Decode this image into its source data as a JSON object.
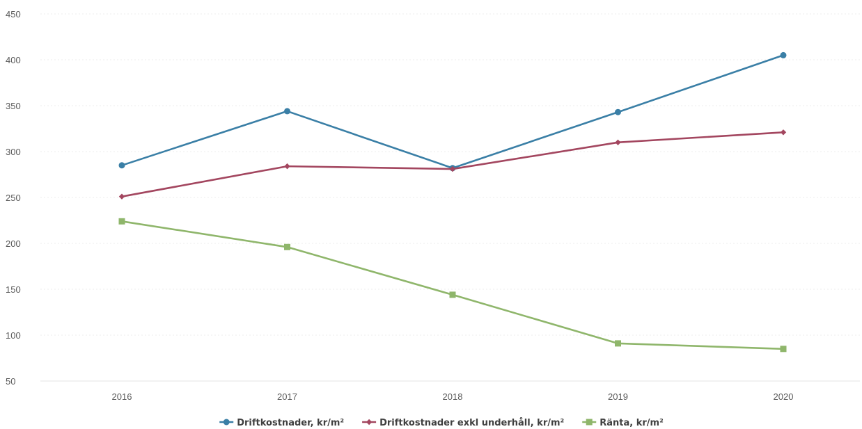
{
  "chart_data": {
    "type": "line",
    "title": "",
    "xlabel": "",
    "ylabel": "",
    "categories": [
      "2016",
      "2017",
      "2018",
      "2019",
      "2020"
    ],
    "ylim": [
      50,
      450
    ],
    "yticks": [
      50,
      100,
      150,
      200,
      250,
      300,
      350,
      400,
      450
    ],
    "grid": true,
    "legend_position": "bottom",
    "series": [
      {
        "name": "Driftkostnader, kr/m²",
        "color": "#3a7fa6",
        "marker": "circle",
        "values": [
          285,
          344,
          282,
          343,
          405
        ]
      },
      {
        "name": "Driftkostnader exkl underhåll, kr/m²",
        "color": "#a3465f",
        "marker": "diamond",
        "values": [
          251,
          284,
          281,
          310,
          321
        ]
      },
      {
        "name": "Ränta, kr/m²",
        "color": "#8fb66b",
        "marker": "square",
        "values": [
          224,
          196,
          144,
          91,
          85
        ]
      }
    ]
  }
}
